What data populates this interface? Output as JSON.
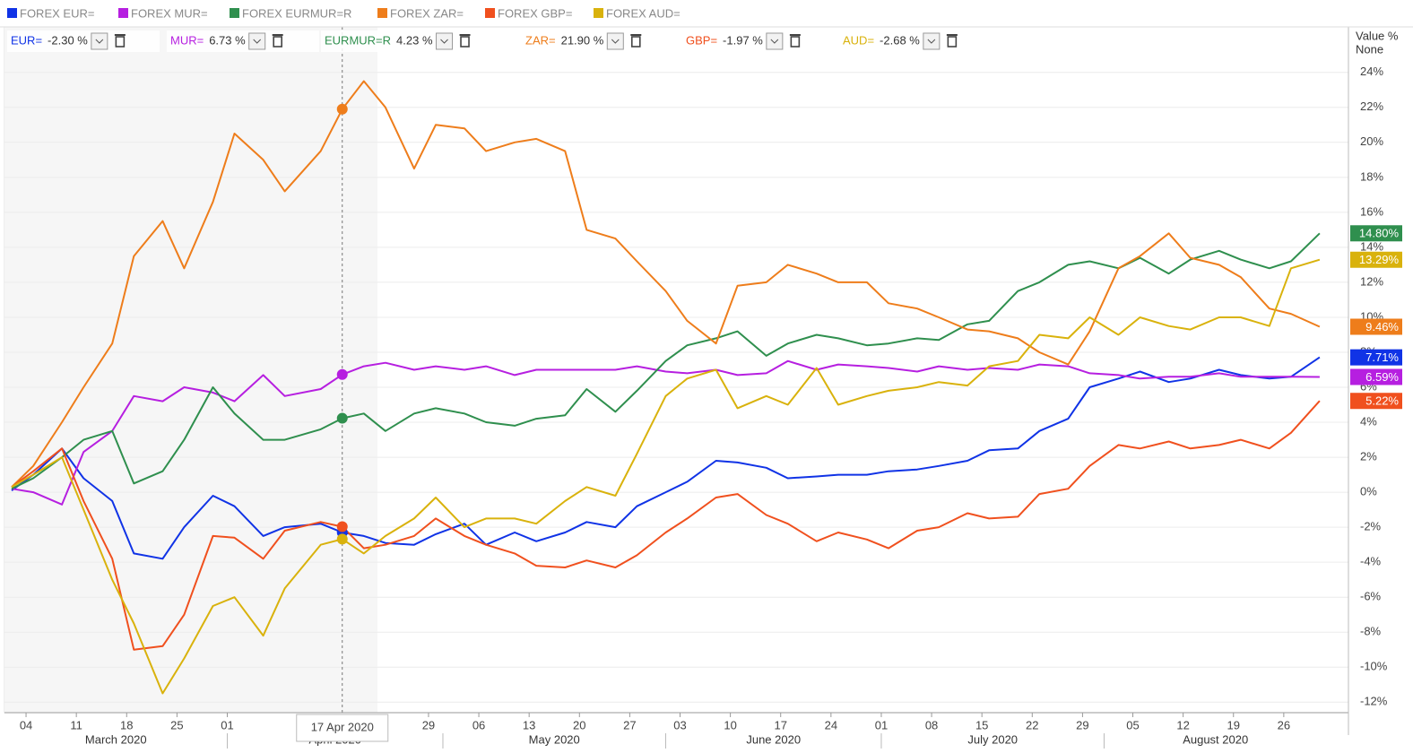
{
  "chart_data": {
    "type": "line",
    "x": [
      "2020-03-02",
      "2020-03-05",
      "2020-03-09",
      "2020-03-12",
      "2020-03-16",
      "2020-03-19",
      "2020-03-23",
      "2020-03-26",
      "2020-03-30",
      "2020-04-02",
      "2020-04-06",
      "2020-04-09",
      "2020-04-14",
      "2020-04-17",
      "2020-04-20",
      "2020-04-23",
      "2020-04-27",
      "2020-04-30",
      "2020-05-04",
      "2020-05-07",
      "2020-05-11",
      "2020-05-14",
      "2020-05-18",
      "2020-05-21",
      "2020-05-25",
      "2020-05-28",
      "2020-06-01",
      "2020-06-04",
      "2020-06-08",
      "2020-06-11",
      "2020-06-15",
      "2020-06-18",
      "2020-06-22",
      "2020-06-25",
      "2020-06-29",
      "2020-07-02",
      "2020-07-06",
      "2020-07-09",
      "2020-07-13",
      "2020-07-16",
      "2020-07-20",
      "2020-07-23",
      "2020-07-27",
      "2020-07-30",
      "2020-08-03",
      "2020-08-06",
      "2020-08-10",
      "2020-08-13",
      "2020-08-17",
      "2020-08-20",
      "2020-08-24",
      "2020-08-27",
      "2020-08-31"
    ],
    "series": [
      {
        "name": "FOREX EUR=",
        "code": "EUR=",
        "color": "#1033e6",
        "hover": {
          "value": -2.3,
          "label": "-2.30 %"
        },
        "end_label": {
          "value": 7.71,
          "label": "7.71%"
        },
        "values": [
          0.1,
          1.0,
          2.5,
          0.8,
          -0.5,
          -3.5,
          -3.8,
          -2.0,
          -0.2,
          -0.8,
          -2.5,
          -2.0,
          -1.8,
          -2.3,
          -2.5,
          -2.9,
          -3.0,
          -2.4,
          -1.8,
          -3.0,
          -2.3,
          -2.8,
          -2.3,
          -1.7,
          -2.0,
          -0.8,
          0.0,
          0.6,
          1.8,
          1.7,
          1.4,
          0.8,
          0.9,
          1.0,
          1.0,
          1.2,
          1.3,
          1.5,
          1.8,
          2.4,
          2.5,
          3.5,
          4.2,
          6.0,
          6.5,
          6.9,
          6.3,
          6.5,
          7.0,
          6.7,
          6.5,
          6.6,
          7.71
        ]
      },
      {
        "name": "FOREX MUR=",
        "code": "MUR=",
        "color": "#b61fe0",
        "hover": {
          "value": 6.73,
          "label": "6.73 %"
        },
        "end_label": {
          "value": 6.59,
          "label": "6.59%"
        },
        "values": [
          0.2,
          0.0,
          -0.7,
          2.3,
          3.5,
          5.5,
          5.2,
          6.0,
          5.7,
          5.2,
          6.7,
          5.5,
          5.9,
          6.73,
          7.2,
          7.4,
          7.0,
          7.2,
          7.0,
          7.2,
          6.7,
          7.0,
          7.0,
          7.0,
          7.0,
          7.2,
          6.9,
          6.8,
          7.0,
          6.7,
          6.8,
          7.5,
          7.0,
          7.3,
          7.2,
          7.1,
          6.9,
          7.2,
          7.0,
          7.1,
          7.0,
          7.3,
          7.2,
          6.8,
          6.7,
          6.5,
          6.6,
          6.6,
          6.8,
          6.6,
          6.6,
          6.6,
          6.59
        ]
      },
      {
        "name": "FOREX EURMUR=R",
        "code": "EURMUR=R",
        "color": "#2f8f4e",
        "hover": {
          "value": 4.23,
          "label": "4.23 %"
        },
        "end_label": {
          "value": 14.8,
          "label": "14.80%"
        },
        "values": [
          0.2,
          0.8,
          2.0,
          3.0,
          3.5,
          0.5,
          1.2,
          3.0,
          6.0,
          4.5,
          3.0,
          3.0,
          3.6,
          4.23,
          4.5,
          3.5,
          4.5,
          4.8,
          4.5,
          4.0,
          3.8,
          4.2,
          4.4,
          5.9,
          4.6,
          5.8,
          7.5,
          8.4,
          8.8,
          9.2,
          7.8,
          8.5,
          9.0,
          8.8,
          8.4,
          8.5,
          8.8,
          8.7,
          9.6,
          9.8,
          11.5,
          12.0,
          13.0,
          13.2,
          12.8,
          13.4,
          12.5,
          13.3,
          13.8,
          13.3,
          12.8,
          13.2,
          14.8
        ]
      },
      {
        "name": "FOREX ZAR=",
        "code": "ZAR=",
        "color": "#ee7d1b",
        "hover": {
          "value": 21.9,
          "label": "21.90 %"
        },
        "end_label": {
          "value": 9.46,
          "label": "9.46%"
        },
        "values": [
          0.3,
          1.5,
          4.0,
          6.0,
          8.5,
          13.5,
          15.5,
          12.8,
          16.6,
          20.5,
          19.0,
          17.2,
          19.5,
          21.9,
          23.5,
          22.0,
          18.5,
          21.0,
          20.8,
          19.5,
          20.0,
          20.2,
          19.5,
          15.0,
          14.5,
          13.2,
          11.5,
          9.8,
          8.5,
          11.8,
          12.0,
          13.0,
          12.5,
          12.0,
          12.0,
          10.8,
          10.5,
          10.0,
          9.3,
          9.2,
          8.8,
          8.0,
          7.3,
          9.2,
          12.8,
          13.5,
          14.8,
          13.4,
          13.0,
          12.3,
          10.5,
          10.2,
          9.46
        ]
      },
      {
        "name": "FOREX GBP=",
        "code": "GBP=",
        "color": "#f0501e",
        "hover": {
          "value": -1.97,
          "label": "-1.97 %"
        },
        "end_label": {
          "value": 5.22,
          "label": "5.22%"
        },
        "values": [
          0.3,
          1.2,
          2.5,
          -0.5,
          -3.8,
          -9.0,
          -8.8,
          -7.0,
          -2.5,
          -2.6,
          -3.8,
          -2.2,
          -1.7,
          -1.97,
          -3.2,
          -3.0,
          -2.5,
          -1.5,
          -2.5,
          -3.0,
          -3.5,
          -4.2,
          -4.3,
          -3.9,
          -4.3,
          -3.6,
          -2.3,
          -1.5,
          -0.3,
          -0.1,
          -1.3,
          -1.8,
          -2.8,
          -2.3,
          -2.7,
          -3.2,
          -2.2,
          -2.0,
          -1.2,
          -1.5,
          -1.4,
          -0.1,
          0.2,
          1.5,
          2.7,
          2.5,
          2.9,
          2.5,
          2.7,
          3.0,
          2.5,
          3.4,
          5.22
        ]
      },
      {
        "name": "FOREX AUD=",
        "code": "AUD=",
        "color": "#d9b20c",
        "hover": {
          "value": -2.68,
          "label": "-2.68 %"
        },
        "end_label": {
          "value": 13.29,
          "label": "13.29%"
        },
        "values": [
          0.3,
          1.0,
          2.0,
          -1.0,
          -5.0,
          -7.5,
          -11.5,
          -9.5,
          -6.5,
          -6.0,
          -8.2,
          -5.5,
          -3.0,
          -2.68,
          -3.5,
          -2.5,
          -1.5,
          -0.3,
          -2.0,
          -1.5,
          -1.5,
          -1.8,
          -0.5,
          0.3,
          -0.2,
          2.2,
          5.5,
          6.5,
          7.0,
          4.8,
          5.5,
          5.0,
          7.1,
          5.0,
          5.5,
          5.8,
          6.0,
          6.3,
          6.1,
          7.2,
          7.5,
          9.0,
          8.8,
          10.0,
          9.0,
          10.0,
          9.5,
          9.3,
          10.0,
          10.0,
          9.5,
          12.8,
          13.29
        ]
      }
    ],
    "xlim": [
      "2020-03-01",
      "2020-09-04"
    ],
    "xticks": [
      {
        "value": "2020-03-04",
        "label": "04"
      },
      {
        "value": "2020-03-11",
        "label": "11"
      },
      {
        "value": "2020-03-18",
        "label": "18"
      },
      {
        "value": "2020-03-25",
        "label": "25"
      },
      {
        "value": "2020-04-01",
        "label": "01"
      },
      {
        "value": "2020-04-29",
        "label": "29"
      },
      {
        "value": "2020-05-06",
        "label": "06"
      },
      {
        "value": "2020-05-13",
        "label": "13"
      },
      {
        "value": "2020-05-20",
        "label": "20"
      },
      {
        "value": "2020-05-27",
        "label": "27"
      },
      {
        "value": "2020-06-03",
        "label": "03"
      },
      {
        "value": "2020-06-10",
        "label": "10"
      },
      {
        "value": "2020-06-17",
        "label": "17"
      },
      {
        "value": "2020-06-24",
        "label": "24"
      },
      {
        "value": "2020-07-01",
        "label": "01"
      },
      {
        "value": "2020-07-08",
        "label": "08"
      },
      {
        "value": "2020-07-15",
        "label": "15"
      },
      {
        "value": "2020-07-22",
        "label": "22"
      },
      {
        "value": "2020-07-29",
        "label": "29"
      },
      {
        "value": "2020-08-05",
        "label": "05"
      },
      {
        "value": "2020-08-12",
        "label": "12"
      },
      {
        "value": "2020-08-19",
        "label": "19"
      },
      {
        "value": "2020-08-26",
        "label": "26"
      }
    ],
    "months": [
      {
        "value": "2020-03",
        "label": "March 2020"
      },
      {
        "value": "2020-04",
        "label": "April 2020"
      },
      {
        "value": "2020-05",
        "label": "May 2020"
      },
      {
        "value": "2020-06",
        "label": "June 2020"
      },
      {
        "value": "2020-07",
        "label": "July 2020"
      },
      {
        "value": "2020-08",
        "label": "August 2020"
      }
    ],
    "ylim": [
      -12.6,
      26.6
    ],
    "yticks": [
      {
        "value": -12,
        "label": "-12%"
      },
      {
        "value": -10,
        "label": "-10%"
      },
      {
        "value": -8,
        "label": "-8%"
      },
      {
        "value": -6,
        "label": "-6%"
      },
      {
        "value": -4,
        "label": "-4%"
      },
      {
        "value": -2,
        "label": "-2%"
      },
      {
        "value": 0,
        "label": "0%"
      },
      {
        "value": 2,
        "label": "2%"
      },
      {
        "value": 4,
        "label": "4%"
      },
      {
        "value": 6,
        "label": "6%"
      },
      {
        "value": 8,
        "label": "8%"
      },
      {
        "value": 10,
        "label": "10%"
      },
      {
        "value": 12,
        "label": "12%"
      },
      {
        "value": 14,
        "label": "14%"
      },
      {
        "value": 16,
        "label": "16%"
      },
      {
        "value": 18,
        "label": "18%"
      },
      {
        "value": 20,
        "label": "20%"
      },
      {
        "value": 22,
        "label": "22%"
      },
      {
        "value": 24,
        "label": "24%"
      }
    ],
    "grid": true,
    "right_axis": {
      "title": "Value %",
      "mode": "None"
    },
    "crosshair": {
      "date": "2020-04-17",
      "label": "17 Apr 2020"
    }
  }
}
